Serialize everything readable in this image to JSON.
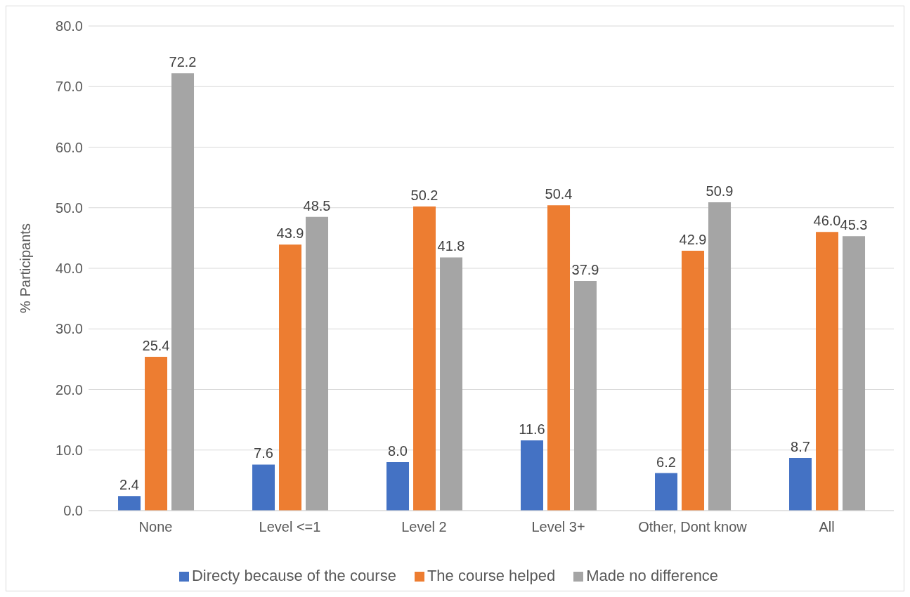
{
  "chart_data": {
    "type": "bar",
    "ylabel": "% Participants",
    "categories": [
      "None",
      "Level <=1",
      "Level 2",
      "Level 3+",
      "Other, Dont know",
      "All"
    ],
    "series": [
      {
        "name": "Directy because of the course",
        "color": "#4472c4",
        "values": [
          2.4,
          7.6,
          8.0,
          11.6,
          6.2,
          8.7
        ],
        "value_labels": [
          "2.4",
          "7.6",
          "8.0",
          "11.6",
          "6.2",
          "8.7"
        ]
      },
      {
        "name": "The course helped",
        "color": "#ed7d31",
        "values": [
          25.4,
          43.9,
          50.2,
          50.4,
          42.9,
          46.0
        ],
        "value_labels": [
          "25.4",
          "43.9",
          "50.2",
          "50.4",
          "42.9",
          "46.0"
        ]
      },
      {
        "name": "Made no difference",
        "color": "#a5a5a5",
        "values": [
          72.2,
          48.5,
          41.8,
          37.9,
          50.9,
          45.3
        ],
        "value_labels": [
          "72.2",
          "48.5",
          "41.8",
          "37.9",
          "50.9",
          "45.3"
        ]
      }
    ],
    "ylim": [
      0,
      80
    ],
    "yticks": [
      {
        "value": 0,
        "label": "0.0"
      },
      {
        "value": 10,
        "label": "10.0"
      },
      {
        "value": 20,
        "label": "20.0"
      },
      {
        "value": 30,
        "label": "30.0"
      },
      {
        "value": 40,
        "label": "40.0"
      },
      {
        "value": 50,
        "label": "50.0"
      },
      {
        "value": 60,
        "label": "60.0"
      },
      {
        "value": 70,
        "label": "70.0"
      },
      {
        "value": 80,
        "label": "80.0"
      }
    ],
    "grid": "y",
    "legend": "bottom"
  }
}
